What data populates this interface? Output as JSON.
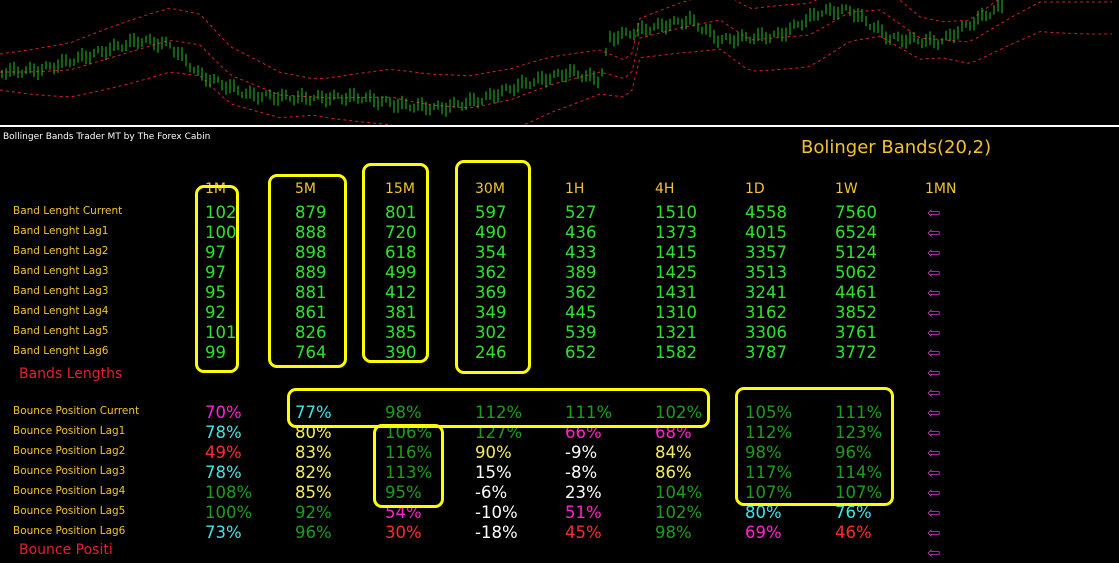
{
  "panel": {
    "title": "Bollinger Bands Trader MT by The Forex Cabin",
    "indicator_title": "Bolinger Bands(20,2)"
  },
  "timeframes": [
    "1M",
    "5M",
    "15M",
    "30M",
    "1H",
    "4H",
    "1D",
    "1W",
    "1MN"
  ],
  "colors": {
    "background": "#000000",
    "label_yellow": "#f3c32b",
    "bright_green": "#2fe12f",
    "dark_green": "#1f9b1f",
    "white": "#ffffff",
    "magenta": "#ff22cc",
    "cyan": "#3fe6e6",
    "red": "#ff2a2a",
    "light_yellow": "#f5ec59",
    "arrow_purple": "#c53cc8",
    "highlight_yellow": "#ffff00"
  },
  "arrow_glyph": "⇦",
  "band_rows": [
    {
      "label": "Band Lenght Current",
      "values": [
        "102",
        "879",
        "801",
        "597",
        "527",
        "1510",
        "4558",
        "7560"
      ]
    },
    {
      "label": "Band Lenght Lag1",
      "values": [
        "100",
        "888",
        "720",
        "490",
        "436",
        "1373",
        "4015",
        "6524"
      ]
    },
    {
      "label": "Band Lenght Lag2",
      "values": [
        "97",
        "898",
        "618",
        "354",
        "433",
        "1415",
        "3357",
        "5124"
      ]
    },
    {
      "label": "Band Lenght Lag3",
      "values": [
        "97",
        "889",
        "499",
        "362",
        "389",
        "1425",
        "3513",
        "5062"
      ]
    },
    {
      "label": "Band Lenght Lag3",
      "values": [
        "95",
        "881",
        "412",
        "369",
        "362",
        "1431",
        "3241",
        "4461"
      ]
    },
    {
      "label": "Band Lenght Lag4",
      "values": [
        "92",
        "861",
        "381",
        "349",
        "445",
        "1310",
        "3162",
        "3852"
      ]
    },
    {
      "label": "Band Lenght Lag5",
      "values": [
        "101",
        "826",
        "385",
        "302",
        "539",
        "1321",
        "3306",
        "3761"
      ]
    },
    {
      "label": "Band Lenght Lag6",
      "values": [
        "99",
        "764",
        "390",
        "246",
        "652",
        "1582",
        "3787",
        "3772"
      ]
    }
  ],
  "section_lengths": "Bands Lengths",
  "section_next_partial": "Bounce Positi",
  "bounce_rows": [
    {
      "label": "Bounce Position Current",
      "cells": [
        {
          "v": "70%",
          "c": "magenta"
        },
        {
          "v": "77%",
          "c": "cyan"
        },
        {
          "v": "98%",
          "c": "dark_green"
        },
        {
          "v": "112%",
          "c": "dark_green"
        },
        {
          "v": "111%",
          "c": "dark_green"
        },
        {
          "v": "102%",
          "c": "dark_green"
        },
        {
          "v": "105%",
          "c": "dark_green"
        },
        {
          "v": "111%",
          "c": "dark_green"
        }
      ]
    },
    {
      "label": "Bounce Position Lag1",
      "cells": [
        {
          "v": "78%",
          "c": "cyan"
        },
        {
          "v": "80%",
          "c": "light_yellow"
        },
        {
          "v": "106%",
          "c": "dark_green"
        },
        {
          "v": "127%",
          "c": "dark_green"
        },
        {
          "v": "66%",
          "c": "magenta"
        },
        {
          "v": "68%",
          "c": "magenta"
        },
        {
          "v": "112%",
          "c": "dark_green"
        },
        {
          "v": "123%",
          "c": "dark_green"
        }
      ]
    },
    {
      "label": "Bounce Position Lag2",
      "cells": [
        {
          "v": "49%",
          "c": "red"
        },
        {
          "v": "83%",
          "c": "light_yellow"
        },
        {
          "v": "116%",
          "c": "dark_green"
        },
        {
          "v": "90%",
          "c": "light_yellow"
        },
        {
          "v": "-9%",
          "c": "white"
        },
        {
          "v": "84%",
          "c": "light_yellow"
        },
        {
          "v": "98%",
          "c": "dark_green"
        },
        {
          "v": "96%",
          "c": "dark_green"
        }
      ]
    },
    {
      "label": "Bounce Position Lag3",
      "cells": [
        {
          "v": "78%",
          "c": "cyan"
        },
        {
          "v": "82%",
          "c": "light_yellow"
        },
        {
          "v": "113%",
          "c": "dark_green"
        },
        {
          "v": "15%",
          "c": "white"
        },
        {
          "v": "-8%",
          "c": "white"
        },
        {
          "v": "86%",
          "c": "light_yellow"
        },
        {
          "v": "117%",
          "c": "dark_green"
        },
        {
          "v": "114%",
          "c": "dark_green"
        }
      ]
    },
    {
      "label": "Bounce Position Lag4",
      "cells": [
        {
          "v": "108%",
          "c": "dark_green"
        },
        {
          "v": "85%",
          "c": "light_yellow"
        },
        {
          "v": "95%",
          "c": "dark_green"
        },
        {
          "v": "-6%",
          "c": "white"
        },
        {
          "v": "23%",
          "c": "white"
        },
        {
          "v": "104%",
          "c": "dark_green"
        },
        {
          "v": "107%",
          "c": "dark_green"
        },
        {
          "v": "107%",
          "c": "dark_green"
        }
      ]
    },
    {
      "label": "Bounce Position Lag5",
      "cells": [
        {
          "v": "100%",
          "c": "dark_green"
        },
        {
          "v": "92%",
          "c": "dark_green"
        },
        {
          "v": "54%",
          "c": "magenta"
        },
        {
          "v": "-10%",
          "c": "white"
        },
        {
          "v": "51%",
          "c": "magenta"
        },
        {
          "v": "102%",
          "c": "dark_green"
        },
        {
          "v": "80%",
          "c": "cyan"
        },
        {
          "v": "76%",
          "c": "cyan"
        }
      ]
    },
    {
      "label": "Bounce Position Lag6",
      "cells": [
        {
          "v": "73%",
          "c": "cyan"
        },
        {
          "v": "96%",
          "c": "dark_green"
        },
        {
          "v": "30%",
          "c": "red"
        },
        {
          "v": "-18%",
          "c": "white"
        },
        {
          "v": "45%",
          "c": "red"
        },
        {
          "v": "98%",
          "c": "dark_green"
        },
        {
          "v": "69%",
          "c": "magenta"
        },
        {
          "v": "46%",
          "c": "red"
        }
      ]
    }
  ]
}
